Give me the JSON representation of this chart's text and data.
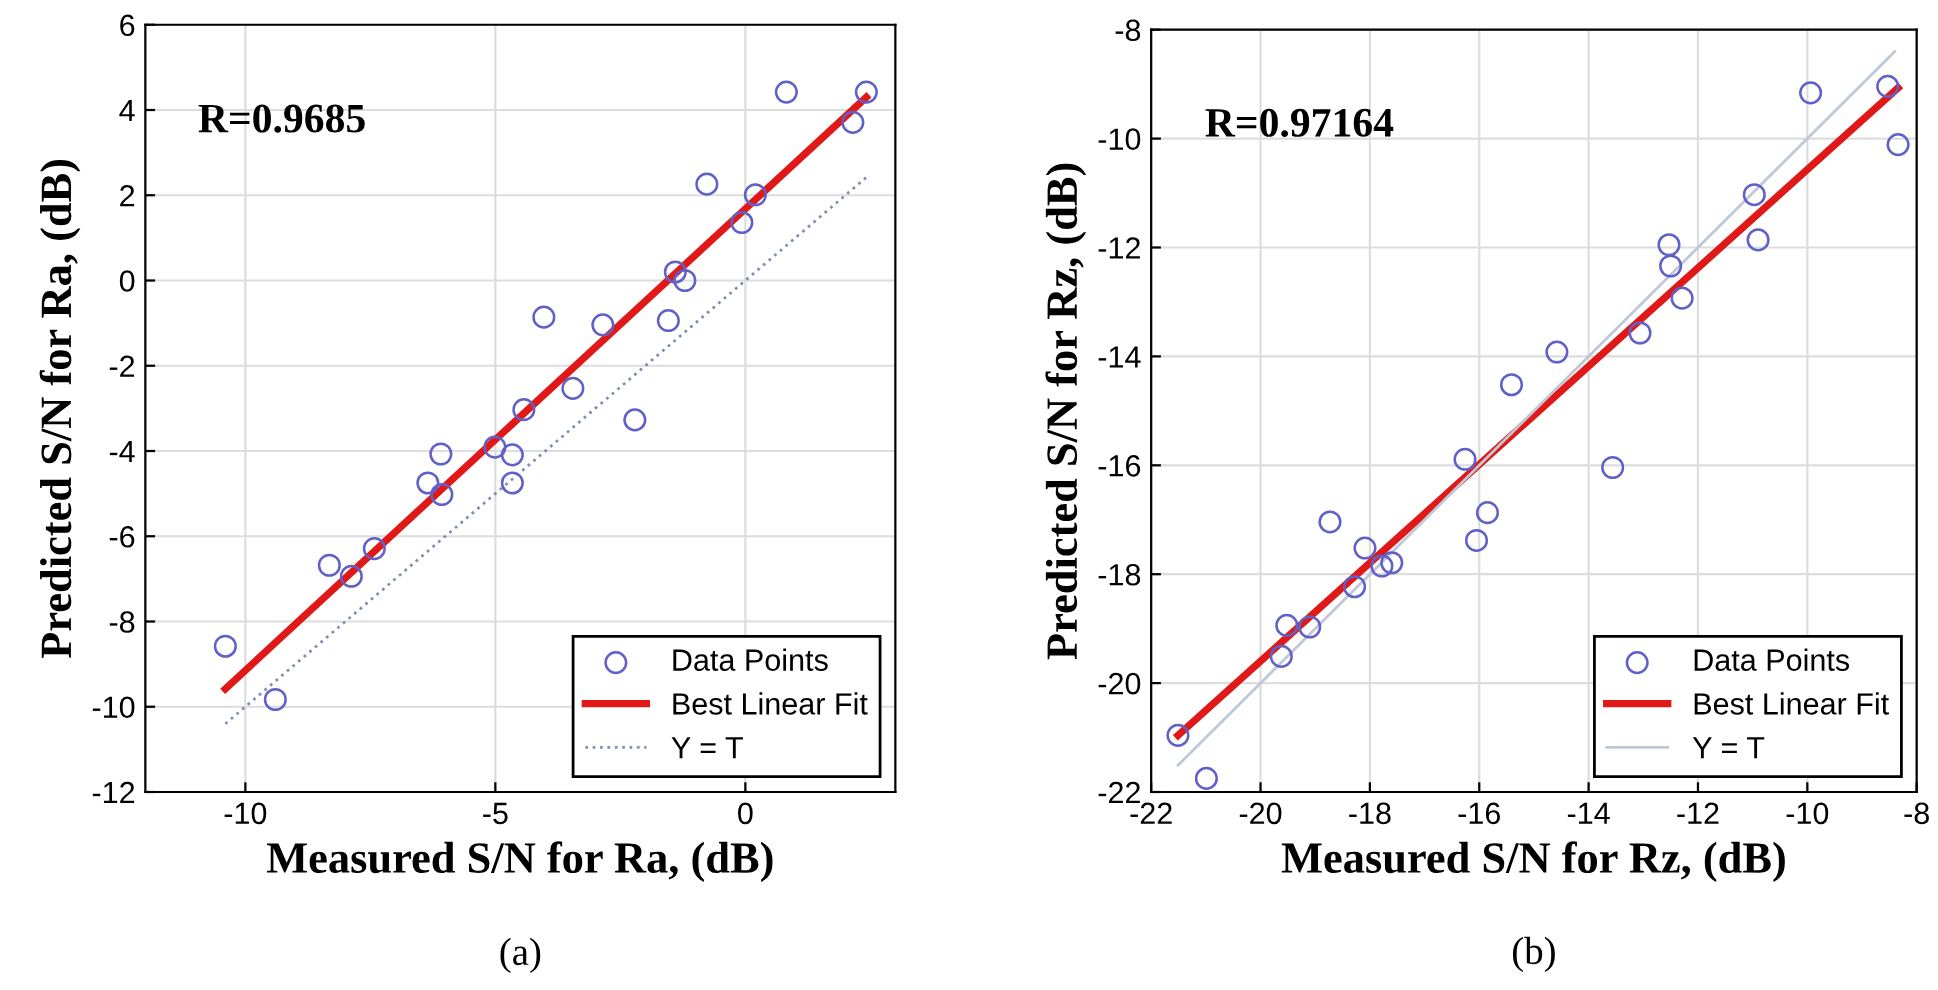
{
  "chart_data": [
    {
      "type": "scatter",
      "xlabel": "Measured S/N for Ra, (dB)",
      "ylabel": "Predicted S/N for Ra, (dB)",
      "xlim": [
        -12,
        3
      ],
      "xticks": [
        -10,
        -5,
        0
      ],
      "ylim": [
        -12,
        6
      ],
      "yticks": [
        -12,
        -10,
        -8,
        -6,
        -4,
        -2,
        0,
        2,
        4,
        6
      ],
      "grid": true,
      "legend": "bottom right",
      "annotations": [
        "R=0.9685",
        "(a)"
      ],
      "series": [
        {
          "name": "Data Points",
          "marker": "circle",
          "color": "#6060c8",
          "x": [
            -10.4,
            -9.4,
            -8.32,
            -7.88,
            -7.42,
            -6.35,
            -6.09,
            -6.07,
            -5.01,
            -4.66,
            -4.66,
            -4.43,
            -4.03,
            -3.45,
            -2.85,
            -2.21,
            -1.54,
            -1.4,
            -1.21,
            -0.77,
            -0.07,
            0.2,
            0.82,
            2.15,
            2.42
          ],
          "values": [
            -8.58,
            -9.83,
            -6.68,
            -6.94,
            -6.29,
            -4.75,
            -4.07,
            -5.02,
            -3.91,
            -4.09,
            -4.75,
            -3.03,
            -0.86,
            -2.53,
            -1.04,
            -3.27,
            -0.94,
            0.2,
            0.0,
            2.26,
            1.36,
            2.01,
            4.42,
            3.71,
            4.42
          ]
        },
        {
          "name": "Best Linear Fit",
          "type": "line",
          "marker": "none",
          "line_style": "solid",
          "color": "#e01818",
          "x": [
            -10.4,
            2.42
          ],
          "values": [
            -9.58,
            4.3
          ]
        },
        {
          "name": "Y = T",
          "type": "line",
          "marker": "none",
          "line_style": "dotted",
          "color": "#8090b0",
          "x": [
            -10.4,
            2.42
          ],
          "values": [
            -10.4,
            2.42
          ]
        }
      ]
    },
    {
      "type": "scatter",
      "xlabel": "Measured S/N for Rz, (dB)",
      "ylabel": "Predicted S/N for Rz, (dB)",
      "xlim": [
        -22,
        -8
      ],
      "xticks": [
        -22,
        -20,
        -18,
        -16,
        -14,
        -12,
        -10,
        -8
      ],
      "ylim": [
        -22,
        -8
      ],
      "yticks": [
        -22,
        -20,
        -18,
        -16,
        -14,
        -12,
        -10,
        -8
      ],
      "grid": true,
      "legend": "bottom right",
      "annotations": [
        "R=0.97164",
        "(b)"
      ],
      "series": [
        {
          "name": "Data Points",
          "marker": "circle",
          "color": "#6060c8",
          "x": [
            -21.51,
            -20.99,
            -19.62,
            -19.52,
            -19.1,
            -18.73,
            -18.28,
            -18.09,
            -17.78,
            -17.6,
            -16.26,
            -16.05,
            -15.85,
            -15.41,
            -14.58,
            -13.56,
            -13.06,
            -12.53,
            -12.5,
            -12.29,
            -10.97,
            -10.9,
            -9.94,
            -8.53,
            -8.34
          ],
          "values": [
            -20.96,
            -21.75,
            -19.51,
            -18.94,
            -18.97,
            -17.04,
            -18.23,
            -17.52,
            -17.85,
            -17.79,
            -15.89,
            -17.38,
            -16.87,
            -14.52,
            -13.92,
            -16.04,
            -13.57,
            -11.95,
            -12.34,
            -12.93,
            -11.03,
            -11.86,
            -9.16,
            -9.04,
            -10.11
          ]
        },
        {
          "name": "Best Linear Fit",
          "type": "line",
          "marker": "none",
          "line_style": "solid",
          "color": "#e01818",
          "x": [
            -21.51,
            -8.34
          ],
          "values": [
            -20.96,
            -9.07
          ]
        },
        {
          "name": "Y = T",
          "type": "line",
          "marker": "none",
          "line_style": "solid",
          "color": "#c0c8d8",
          "x": [
            -21.51,
            -8.4
          ],
          "values": [
            -21.51,
            -8.4
          ]
        }
      ]
    }
  ]
}
